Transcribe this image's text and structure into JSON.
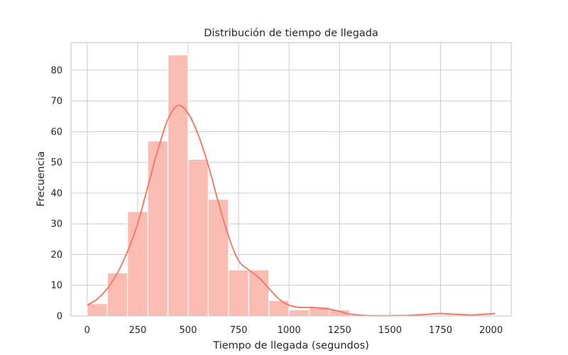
{
  "chart_data": {
    "type": "bar",
    "title": "Distribución de tiempo de llegada",
    "xlabel": "Tiempo de llegada (segundos)",
    "ylabel": "Frecuencia",
    "xlim": [
      -80,
      2100
    ],
    "ylim": [
      0,
      89
    ],
    "xticks": [
      0,
      250,
      500,
      750,
      1000,
      1250,
      1500,
      1750,
      2000
    ],
    "yticks": [
      0,
      10,
      20,
      30,
      40,
      50,
      60,
      70,
      80
    ],
    "bin_width": 100,
    "bins": [
      {
        "start": 0,
        "count": 4
      },
      {
        "start": 100,
        "count": 14
      },
      {
        "start": 200,
        "count": 34
      },
      {
        "start": 300,
        "count": 57
      },
      {
        "start": 400,
        "count": 85
      },
      {
        "start": 500,
        "count": 51
      },
      {
        "start": 600,
        "count": 38
      },
      {
        "start": 700,
        "count": 15
      },
      {
        "start": 800,
        "count": 15
      },
      {
        "start": 900,
        "count": 5
      },
      {
        "start": 1000,
        "count": 2
      },
      {
        "start": 1100,
        "count": 3
      },
      {
        "start": 1200,
        "count": 2
      }
    ],
    "kde": {
      "x": [
        0,
        50,
        100,
        150,
        200,
        250,
        300,
        350,
        400,
        450,
        500,
        550,
        600,
        650,
        700,
        750,
        800,
        850,
        900,
        950,
        1000,
        1050,
        1100,
        1150,
        1200,
        1250,
        1300,
        1400,
        1500,
        1600,
        1700,
        1750,
        1800,
        1900,
        2000,
        2020
      ],
      "y": [
        3.5,
        5.5,
        9,
        14,
        21,
        30,
        42,
        54,
        64,
        68.5,
        66,
        59,
        49,
        37,
        26,
        18,
        15,
        12.5,
        9,
        5.5,
        3.5,
        2.8,
        2.8,
        2.6,
        2.2,
        1.5,
        0.6,
        0.1,
        0.1,
        0.2,
        0.6,
        0.8,
        0.6,
        0.3,
        0.7,
        0.8
      ]
    },
    "grid": true,
    "colors": {
      "bar_fill": "#fbbdb3",
      "bar_edge": "#ffffff",
      "kde_line": "#f07b6c",
      "grid": "#cccccc"
    }
  }
}
